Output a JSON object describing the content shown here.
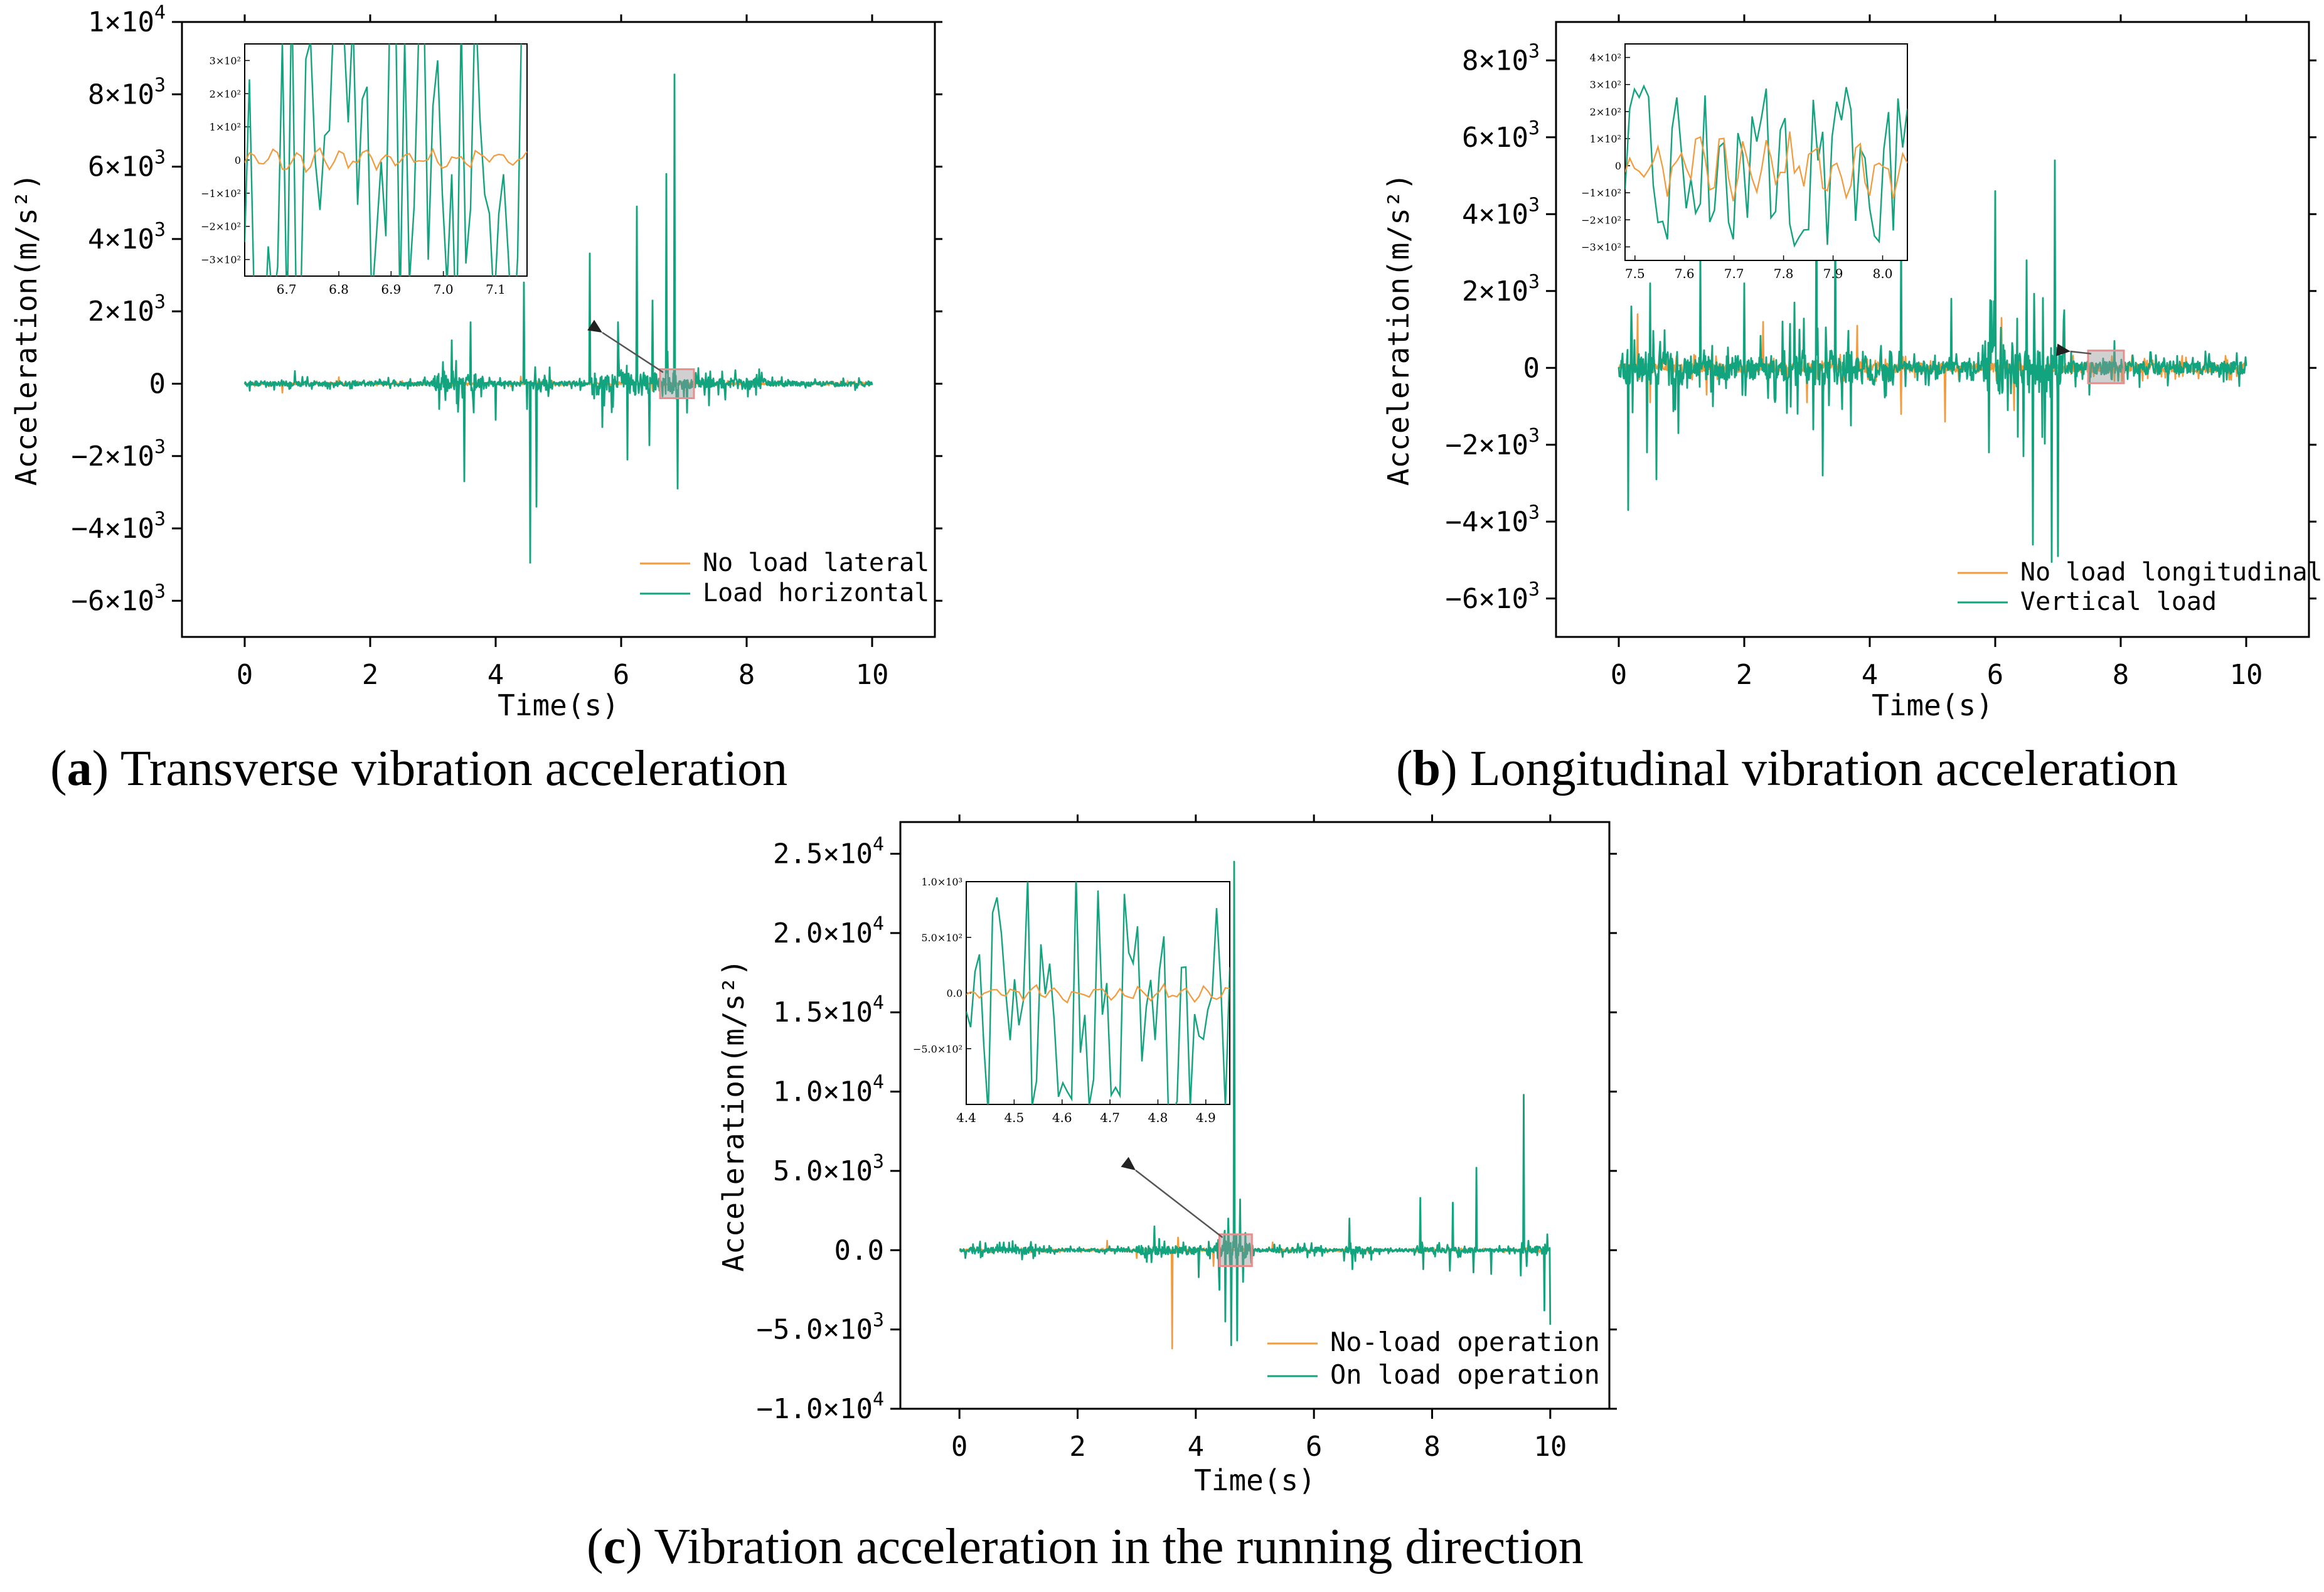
{
  "colors": {
    "noload": "#f39a3c",
    "load": "#12a37f",
    "axis": "#000000",
    "zoom_box": "#e98d8d",
    "arrow": "#555555"
  },
  "chart_data": [
    {
      "type": "line",
      "panel_id": "a",
      "caption_letter": "a",
      "caption_text": "Transverse vibration acceleration",
      "xlabel": "Time(s)",
      "ylabel": "Acceleration(m/s²)",
      "xlim": [
        -1,
        11
      ],
      "ylim": [
        -7000,
        10000
      ],
      "xticks": [
        0,
        2,
        4,
        6,
        8,
        10
      ],
      "yticks": [
        {
          "value": -6000,
          "mant": "−6×10",
          "exp": "3"
        },
        {
          "value": -4000,
          "mant": "−4×10",
          "exp": "3"
        },
        {
          "value": -2000,
          "mant": "−2×10",
          "exp": "3"
        },
        {
          "value": 0,
          "mant": "0",
          "exp": ""
        },
        {
          "value": 2000,
          "mant": "2×10",
          "exp": "3"
        },
        {
          "value": 4000,
          "mant": "4×10",
          "exp": "3"
        },
        {
          "value": 6000,
          "mant": "6×10",
          "exp": "3"
        },
        {
          "value": 8000,
          "mant": "8×10",
          "exp": "3"
        },
        {
          "value": 10000,
          "mant": "1×10",
          "exp": "4"
        }
      ],
      "legend_position": "bottom-right",
      "series": [
        {
          "name": "No load lateral",
          "color": "#f39a3c",
          "baseline_amplitude": 80,
          "spikes": [
            [
              0.6,
              -250
            ],
            [
              1.5,
              180
            ],
            [
              3.2,
              -300
            ],
            [
              4.4,
              200
            ],
            [
              6.5,
              -200
            ]
          ]
        },
        {
          "name": "Load horizontal",
          "color": "#12a37f",
          "baseline_amplitude": 200,
          "active_regions": [
            [
              3.0,
              3.8,
              800
            ],
            [
              4.6,
              4.9,
              500
            ],
            [
              5.5,
              6.9,
              900
            ],
            [
              7.0,
              8.3,
              450
            ]
          ],
          "spikes": [
            [
              0.8,
              350
            ],
            [
              3.1,
              -700
            ],
            [
              3.3,
              1200
            ],
            [
              3.5,
              -2700
            ],
            [
              3.6,
              1700
            ],
            [
              4.0,
              -1000
            ],
            [
              4.45,
              2800
            ],
            [
              4.5,
              -700
            ],
            [
              4.55,
              -4950
            ],
            [
              4.65,
              -3400
            ],
            [
              5.5,
              3600
            ],
            [
              5.7,
              -1200
            ],
            [
              5.95,
              1700
            ],
            [
              6.1,
              -2100
            ],
            [
              6.25,
              4900
            ],
            [
              6.45,
              -1700
            ],
            [
              6.5,
              2300
            ],
            [
              6.72,
              5800
            ],
            [
              6.85,
              8550
            ],
            [
              6.9,
              -2900
            ],
            [
              7.05,
              -800
            ],
            [
              7.4,
              -600
            ],
            [
              8.2,
              400
            ]
          ]
        }
      ],
      "inset": {
        "xlim": [
          6.62,
          7.16
        ],
        "ylim": [
          -350,
          350
        ],
        "xticks": [
          "6.7",
          "6.8",
          "6.9",
          "7.0",
          "7.1"
        ],
        "yticks": [
          {
            "value": 300,
            "label": "3×10²"
          },
          {
            "value": 200,
            "label": "2×10²"
          },
          {
            "value": 100,
            "label": "1×10²"
          },
          {
            "value": 0,
            "label": "0"
          },
          {
            "value": -100,
            "label": "−1×10²"
          },
          {
            "value": -200,
            "label": "−2×10²"
          },
          {
            "value": -300,
            "label": "−3×10²"
          }
        ],
        "noload_amplitude": 35,
        "load_amplitude": 600,
        "zoom_region_x": [
          6.62,
          7.16
        ],
        "zoom_region_y": [
          -400,
          400
        ]
      }
    },
    {
      "type": "line",
      "panel_id": "b",
      "caption_letter": "b",
      "caption_text": "Longitudinal vibration acceleration",
      "xlabel": "Time(s)",
      "ylabel": "Acceleration(m/s²)",
      "xlim": [
        -1,
        11
      ],
      "ylim": [
        -7000,
        9000
      ],
      "xticks": [
        0,
        2,
        4,
        6,
        8,
        10
      ],
      "yticks": [
        {
          "value": -6000,
          "mant": "−6×10",
          "exp": "3"
        },
        {
          "value": -4000,
          "mant": "−4×10",
          "exp": "3"
        },
        {
          "value": -2000,
          "mant": "−2×10",
          "exp": "3"
        },
        {
          "value": 0,
          "mant": "0",
          "exp": ""
        },
        {
          "value": 2000,
          "mant": "2×10",
          "exp": "3"
        },
        {
          "value": 4000,
          "mant": "4×10",
          "exp": "3"
        },
        {
          "value": 6000,
          "mant": "6×10",
          "exp": "3"
        },
        {
          "value": 8000,
          "mant": "8×10",
          "exp": "3"
        }
      ],
      "legend_position": "bottom-right",
      "series": [
        {
          "name": "No load longitudinal",
          "color": "#f39a3c",
          "baseline_amplitude": 350,
          "spikes": [
            [
              0.3,
              1400
            ],
            [
              0.5,
              -900
            ],
            [
              1.4,
              -700
            ],
            [
              2.3,
              1200
            ],
            [
              3.0,
              -900
            ],
            [
              3.8,
              1100
            ],
            [
              4.5,
              -1200
            ],
            [
              5.2,
              -1400
            ],
            [
              5.9,
              -2100
            ],
            [
              6.1,
              1300
            ],
            [
              6.3,
              -1100
            ]
          ]
        },
        {
          "name": "Vertical load",
          "color": "#12a37f",
          "baseline_amplitude": 500,
          "active_regions": [
            [
              0,
              1.0,
              1300
            ],
            [
              1.0,
              2.6,
              900
            ],
            [
              2.6,
              4.4,
              1300
            ],
            [
              5.8,
              7.1,
              2000
            ],
            [
              7.1,
              10,
              350
            ]
          ],
          "spikes": [
            [
              0.15,
              -3700
            ],
            [
              0.2,
              1600
            ],
            [
              0.45,
              -2200
            ],
            [
              0.5,
              2200
            ],
            [
              0.6,
              -2900
            ],
            [
              0.95,
              -1700
            ],
            [
              1.3,
              3000
            ],
            [
              1.5,
              -1000
            ],
            [
              2.0,
              2200
            ],
            [
              2.5,
              -800
            ],
            [
              2.8,
              1700
            ],
            [
              3.1,
              -1600
            ],
            [
              3.15,
              5500
            ],
            [
              3.25,
              -2800
            ],
            [
              3.45,
              4200
            ],
            [
              3.7,
              -1500
            ],
            [
              4.5,
              -1700
            ],
            [
              4.5,
              3400
            ],
            [
              5.3,
              1800
            ],
            [
              5.9,
              -2200
            ],
            [
              6.0,
              4600
            ],
            [
              6.2,
              -1100
            ],
            [
              6.45,
              -2300
            ],
            [
              6.5,
              2800
            ],
            [
              6.6,
              -4600
            ],
            [
              6.75,
              -1800
            ],
            [
              6.9,
              -5050
            ],
            [
              6.95,
              5400
            ],
            [
              7.0,
              -4900
            ],
            [
              7.1,
              1500
            ],
            [
              7.5,
              -700
            ],
            [
              7.9,
              700
            ],
            [
              8.3,
              -500
            ]
          ]
        }
      ],
      "inset": {
        "xlim": [
          7.48,
          8.05
        ],
        "ylim": [
          -350,
          450
        ],
        "xticks": [
          "7.5",
          "7.6",
          "7.7",
          "7.8",
          "7.9",
          "8.0"
        ],
        "yticks": [
          {
            "value": 400,
            "label": "4×10²"
          },
          {
            "value": 300,
            "label": "3×10²"
          },
          {
            "value": 200,
            "label": "2×10²"
          },
          {
            "value": 100,
            "label": "1×10²"
          },
          {
            "value": 0,
            "label": "0"
          },
          {
            "value": -100,
            "label": "−1×10²"
          },
          {
            "value": -200,
            "label": "−2×10²"
          },
          {
            "value": -300,
            "label": "−3×10²"
          }
        ],
        "noload_amplitude": 120,
        "load_amplitude": 300,
        "zoom_region_x": [
          7.48,
          8.05
        ],
        "zoom_region_y": [
          -400,
          450
        ]
      }
    },
    {
      "type": "line",
      "panel_id": "c",
      "caption_letter": "c",
      "caption_text": "Vibration acceleration in the running direction",
      "xlabel": "Time(s)",
      "ylabel": "Acceleration(m/s²)",
      "xlim": [
        -1,
        11
      ],
      "ylim": [
        -10000,
        27000
      ],
      "xticks": [
        0,
        2,
        4,
        6,
        8,
        10
      ],
      "yticks": [
        {
          "value": -10000,
          "mant": "−1.0×10",
          "exp": "4"
        },
        {
          "value": -5000,
          "mant": "−5.0×10",
          "exp": "3"
        },
        {
          "value": 0,
          "mant": "0.0",
          "exp": ""
        },
        {
          "value": 5000,
          "mant": "5.0×10",
          "exp": "3"
        },
        {
          "value": 10000,
          "mant": "1.0×10",
          "exp": "4"
        },
        {
          "value": 15000,
          "mant": "1.5×10",
          "exp": "4"
        },
        {
          "value": 20000,
          "mant": "2.0×10",
          "exp": "4"
        },
        {
          "value": 25000,
          "mant": "2.5×10",
          "exp": "4"
        }
      ],
      "legend_position": "bottom-right",
      "series": [
        {
          "name": "No-load operation",
          "color": "#f39a3c",
          "baseline_amplitude": 150,
          "spikes": [
            [
              2.5,
              600
            ],
            [
              3.0,
              -500
            ],
            [
              3.6,
              -6200
            ],
            [
              3.7,
              800
            ],
            [
              4.3,
              -1000
            ],
            [
              4.7,
              -1200
            ],
            [
              5.3,
              500
            ]
          ]
        },
        {
          "name": "On load operation",
          "color": "#12a37f",
          "baseline_amplitude": 300,
          "active_regions": [
            [
              0.2,
              1.3,
              600
            ],
            [
              3.0,
              4.1,
              800
            ],
            [
              4.2,
              5.0,
              1500
            ],
            [
              5.3,
              6.2,
              500
            ],
            [
              6.5,
              7.0,
              700
            ],
            [
              7.7,
              8.8,
              500
            ],
            [
              9.5,
              10.0,
              700
            ]
          ],
          "spikes": [
            [
              0.1,
              -500
            ],
            [
              3.3,
              1500
            ],
            [
              4.05,
              -1700
            ],
            [
              4.4,
              -2500
            ],
            [
              4.5,
              -4500
            ],
            [
              4.55,
              2000
            ],
            [
              4.6,
              -6000
            ],
            [
              4.65,
              24500
            ],
            [
              4.7,
              -5700
            ],
            [
              4.75,
              3200
            ],
            [
              4.8,
              -2000
            ],
            [
              6.6,
              2000
            ],
            [
              6.65,
              -1200
            ],
            [
              7.8,
              3300
            ],
            [
              7.85,
              -1200
            ],
            [
              8.3,
              -1300
            ],
            [
              8.35,
              3000
            ],
            [
              8.7,
              -1400
            ],
            [
              8.75,
              5200
            ],
            [
              9.0,
              -1500
            ],
            [
              9.5,
              -1600
            ],
            [
              9.55,
              9800
            ],
            [
              9.6,
              -1000
            ],
            [
              9.9,
              -3800
            ],
            [
              9.95,
              1000
            ],
            [
              10.0,
              -4700
            ]
          ]
        }
      ],
      "inset": {
        "xlim": [
          4.4,
          4.95
        ],
        "ylim": [
          -1000,
          1000
        ],
        "xticks": [
          "4.4",
          "4.5",
          "4.6",
          "4.7",
          "4.8",
          "4.9"
        ],
        "yticks": [
          {
            "value": 1000,
            "label": "1.0×10³"
          },
          {
            "value": 500,
            "label": "5.0×10²"
          },
          {
            "value": 0,
            "label": "0.0"
          },
          {
            "value": -500,
            "label": "−5.0×10²"
          }
        ],
        "noload_amplitude": 80,
        "load_amplitude": 1100,
        "zoom_region_x": [
          4.4,
          4.95
        ],
        "zoom_region_y": [
          -1000,
          1000
        ]
      }
    }
  ]
}
